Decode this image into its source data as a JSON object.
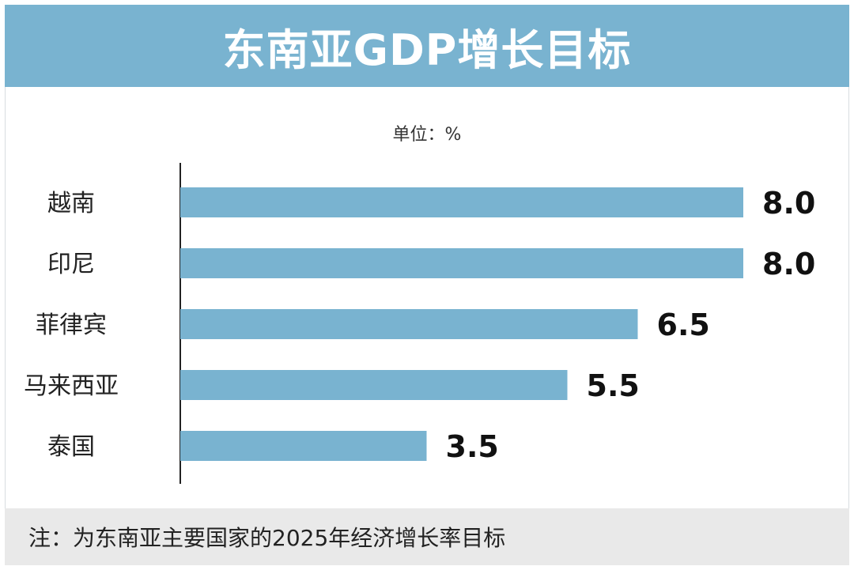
{
  "header": {
    "title": "东南亚GDP增长目标"
  },
  "unit_label": "单位：%",
  "footer": {
    "note": "注：为东南亚主要国家的2025年经济增长率目标"
  },
  "colors": {
    "bar": "#79b3d0",
    "title_bg": "#79b3d0",
    "note_bg": "#e9e9e9"
  },
  "chart_data": {
    "type": "bar",
    "orientation": "horizontal",
    "categories": [
      "越南",
      "印尼",
      "菲律宾",
      "马来西亚",
      "泰国"
    ],
    "values": [
      8.0,
      8.0,
      6.5,
      5.5,
      3.5
    ],
    "value_labels": [
      "8.0",
      "8.0",
      "6.5",
      "5.5",
      "3.5"
    ],
    "title": "东南亚GDP增长目标",
    "xlim": [
      0,
      8
    ],
    "grid": false,
    "legend": "none"
  }
}
